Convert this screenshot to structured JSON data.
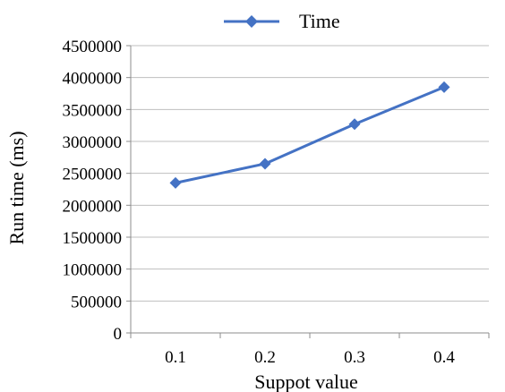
{
  "chart_data": {
    "type": "line",
    "title": "",
    "xlabel": "Suppot value",
    "ylabel": "Run time (ms)",
    "categories": [
      "0.1",
      "0.2",
      "0.3",
      "0.4"
    ],
    "y_ticks": [
      "0",
      "500000",
      "1000000",
      "1500000",
      "2000000",
      "2500000",
      "3000000",
      "3500000",
      "4000000",
      "4500000"
    ],
    "ylim": [
      0,
      4500000
    ],
    "grid": true,
    "legend_position": "top",
    "series": [
      {
        "name": "Time",
        "values": [
          2350000,
          2650000,
          3270000,
          3850000
        ],
        "color": "#4472C4",
        "marker": "diamond"
      }
    ]
  }
}
